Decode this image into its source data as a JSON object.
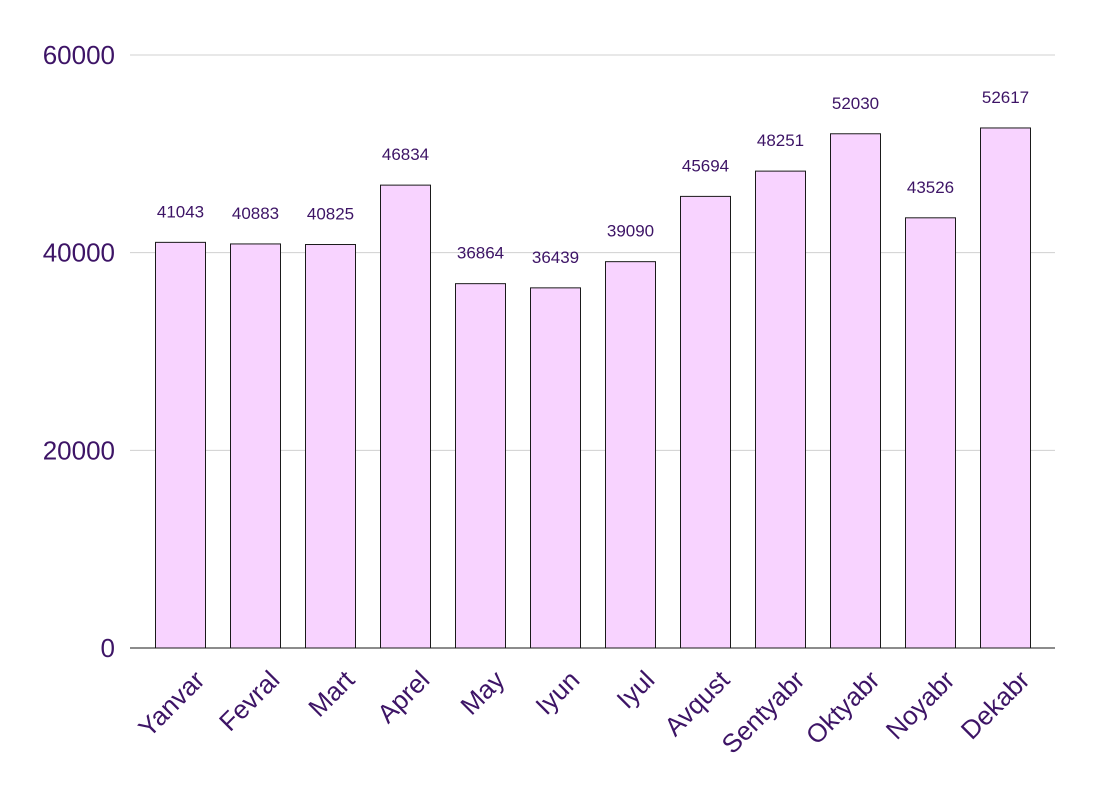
{
  "chart_data": {
    "type": "bar",
    "categories": [
      "Yanvar",
      "Fevral",
      "Mart",
      "Aprel",
      "May",
      "Iyun",
      "Iyul",
      "Avqust",
      "Sentyabr",
      "Oktyabr",
      "Noyabr",
      "Dekabr"
    ],
    "values": [
      41043,
      40883,
      40825,
      46834,
      36864,
      36439,
      39090,
      45694,
      48251,
      52030,
      43526,
      52617
    ],
    "title": "",
    "xlabel": "",
    "ylabel": "",
    "ylim": [
      0,
      60000
    ],
    "yticks": [
      0,
      20000,
      40000,
      60000
    ],
    "grid": true,
    "data_labels": true,
    "colors": {
      "bar_fill": "#f8d3ff",
      "bar_stroke": "#1a1a1a",
      "text": "#3d1466",
      "grid": "#d0d0d0"
    }
  }
}
